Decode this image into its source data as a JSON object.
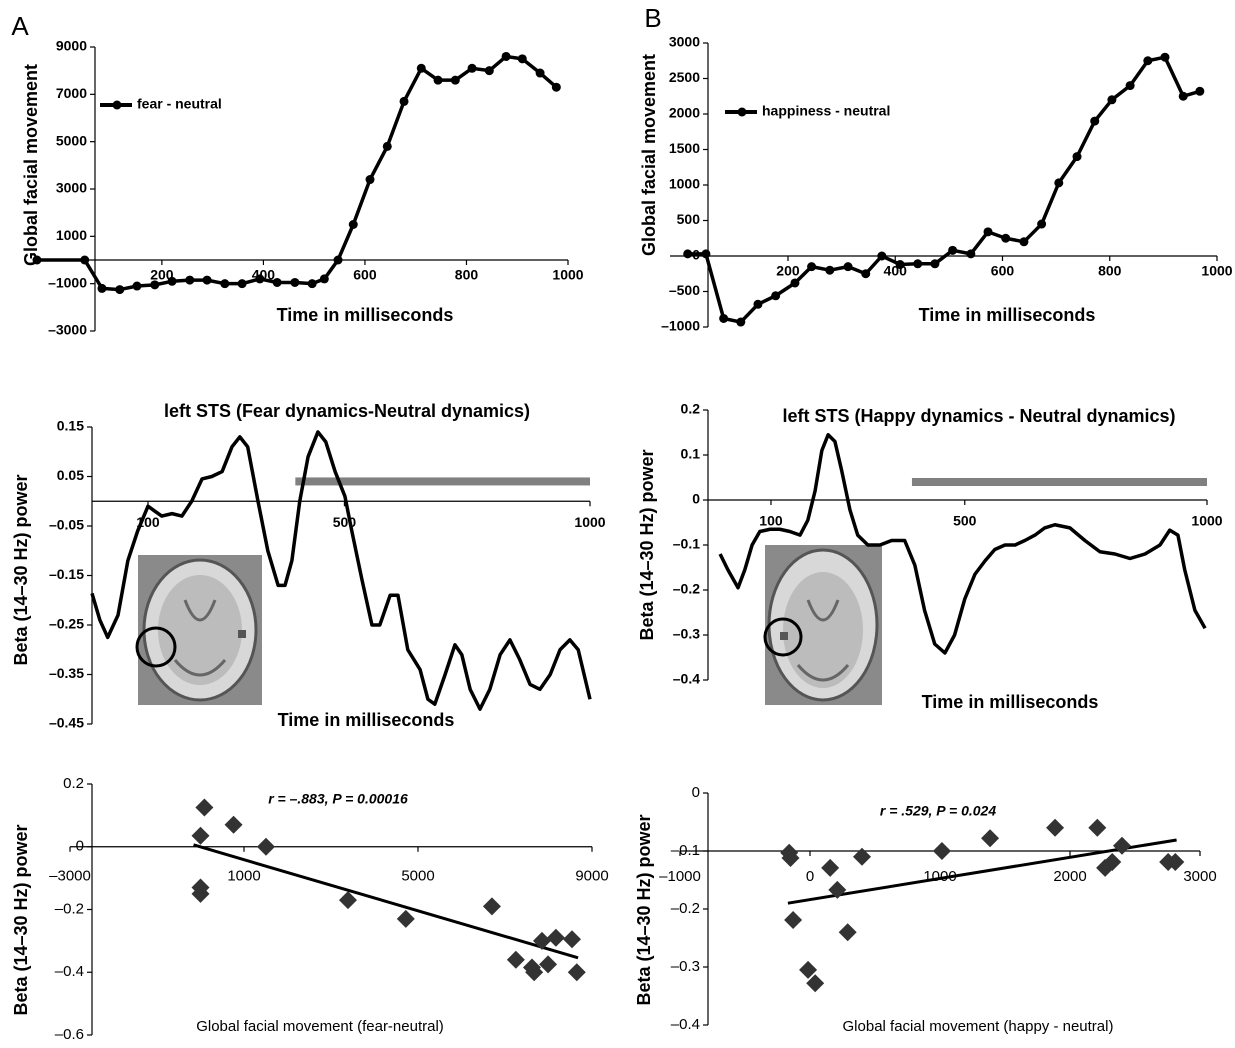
{
  "panels": [
    "A",
    "B"
  ],
  "chart_data": [
    {
      "type": "line",
      "xlabel": "Time in milliseconds",
      "ylabel": "Global facial movement",
      "xlim": [
        -46,
        1000
      ],
      "ylim": [
        -3000,
        9000
      ],
      "x_axis_at": 0,
      "xticks": [
        200,
        400,
        600,
        800,
        1000
      ],
      "yticks": [
        9000,
        7000,
        5000,
        3000,
        1000,
        {
          "value": -1000,
          "label": "–1000"
        },
        {
          "value": -3000,
          "label": "–3000"
        }
      ],
      "legend": "upper left",
      "marker": "circle",
      "x": [
        -46,
        48,
        82,
        117,
        151,
        186,
        220,
        255,
        289,
        324,
        358,
        393,
        427,
        462,
        496,
        520,
        547,
        577,
        610,
        644,
        677,
        711,
        744,
        778,
        811,
        845,
        878,
        910,
        945,
        977
      ],
      "series": [
        {
          "name": "fear - neutral",
          "color": "#000000",
          "values": [
            0,
            0,
            -1200,
            -1250,
            -1100,
            -1050,
            -900,
            -850,
            -850,
            -1000,
            -1000,
            -800,
            -950,
            -950,
            -1000,
            -800,
            0,
            1500,
            3400,
            4800,
            6700,
            8100,
            7600,
            7600,
            8100,
            8000,
            8600,
            8500,
            7900,
            7300
          ]
        }
      ]
    },
    {
      "type": "line",
      "xlabel": "Time in milliseconds",
      "ylabel": "Global facial movement",
      "xlim": [
        -20,
        1000
      ],
      "ylim": [
        -1000,
        3000
      ],
      "x_axis_at": 0,
      "xticks": [
        200,
        400,
        600,
        800,
        1000
      ],
      "yticks": [
        3000,
        2500,
        2000,
        1500,
        1000,
        500,
        0,
        {
          "value": -500,
          "label": "–500"
        },
        {
          "value": -1000,
          "label": "–1000"
        }
      ],
      "legend": "upper left",
      "marker": "circle",
      "x": [
        13,
        47,
        80,
        112,
        144,
        177,
        213,
        244,
        278,
        312,
        345,
        375,
        409,
        442,
        474,
        507,
        541,
        573,
        606,
        640,
        673,
        705,
        739,
        772,
        804,
        838,
        871,
        903,
        937,
        968
      ],
      "series": [
        {
          "name": "happiness - neutral",
          "color": "#000000",
          "values": [
            30,
            30,
            -880,
            -930,
            -680,
            -560,
            -380,
            -150,
            -200,
            -150,
            -250,
            0,
            -120,
            -110,
            -110,
            80,
            30,
            340,
            250,
            200,
            450,
            1030,
            1400,
            1900,
            2200,
            2400,
            2750,
            2800,
            2250,
            2320
          ]
        }
      ]
    },
    {
      "type": "line",
      "title": "left STS (Fear dynamics-Neutral dynamics)",
      "xlabel": "Time in milliseconds",
      "ylabel": "Beta (14–30 Hz) power",
      "xlim": [
        -14,
        1000
      ],
      "ylim": [
        -0.45,
        0.15
      ],
      "x_axis_at": 0,
      "xticks": [
        100,
        500,
        1000
      ],
      "yticks": [
        0.15,
        0.05,
        {
          "value": -0.05,
          "label": "–0.05"
        },
        {
          "value": -0.15,
          "label": "–0.15"
        },
        {
          "value": -0.25,
          "label": "–0.25"
        },
        {
          "value": -0.35,
          "label": "–0.35"
        },
        {
          "value": -0.45,
          "label": "–0.45"
        }
      ],
      "highlight": {
        "x": [
          400,
          1000
        ],
        "y": 0.04,
        "color": "#808080"
      },
      "color": "#000000",
      "x": [
        -14,
        2,
        18,
        39,
        59,
        79,
        100,
        114,
        128,
        149,
        169,
        189,
        210,
        230,
        251,
        271,
        287,
        303,
        324,
        344,
        365,
        379,
        393,
        409,
        426,
        446,
        462,
        481,
        501,
        515,
        536,
        556,
        572,
        593,
        609,
        629,
        654,
        670,
        684,
        705,
        725,
        739,
        756,
        776,
        796,
        817,
        837,
        857,
        878,
        898,
        919,
        939,
        959,
        976,
        1000
      ],
      "values": [
        -0.186,
        -0.24,
        -0.275,
        -0.23,
        -0.12,
        -0.06,
        -0.01,
        -0.02,
        -0.03,
        -0.025,
        -0.03,
        0,
        0.045,
        0.05,
        0.06,
        0.11,
        0.13,
        0.11,
        0,
        -0.1,
        -0.17,
        -0.17,
        -0.12,
        0,
        0.09,
        0.14,
        0.12,
        0.06,
        0.01,
        -0.06,
        -0.16,
        -0.25,
        -0.25,
        -0.19,
        -0.19,
        -0.3,
        -0.34,
        -0.4,
        -0.41,
        -0.35,
        -0.29,
        -0.31,
        -0.38,
        -0.42,
        -0.38,
        -0.31,
        -0.28,
        -0.32,
        -0.37,
        -0.38,
        -0.35,
        -0.3,
        -0.28,
        -0.3,
        -0.4
      ]
    },
    {
      "type": "line",
      "title": "left STS (Happy dynamics - Neutral dynamics)",
      "xlabel": "Time in milliseconds",
      "ylabel": "Beta (14–30 Hz) power",
      "xlim": [
        -30,
        1000
      ],
      "ylim": [
        -0.4,
        0.2
      ],
      "x_axis_at": 0,
      "xticks": [
        100,
        500,
        1000
      ],
      "yticks": [
        0.2,
        0.1,
        0,
        {
          "value": -0.1,
          "label": "–0.1"
        },
        {
          "value": -0.2,
          "label": "–0.2"
        },
        {
          "value": -0.3,
          "label": "–0.3"
        },
        {
          "value": -0.4,
          "label": "–0.4"
        }
      ],
      "highlight": {
        "x": [
          391,
          1000
        ],
        "y": 0.04,
        "color": "#808080"
      },
      "color": "#000000",
      "x": [
        -5,
        11,
        32,
        46,
        61,
        77,
        98,
        118,
        139,
        160,
        176,
        191,
        205,
        218,
        232,
        246,
        263,
        279,
        300,
        325,
        349,
        376,
        397,
        417,
        438,
        459,
        479,
        500,
        521,
        542,
        562,
        583,
        604,
        624,
        645,
        665,
        686,
        717,
        748,
        779,
        810,
        841,
        872,
        903,
        923,
        940,
        954,
        975,
        996
      ],
      "values": [
        -0.12,
        -0.155,
        -0.195,
        -0.155,
        -0.1,
        -0.07,
        -0.065,
        -0.065,
        -0.07,
        -0.078,
        -0.045,
        0.02,
        0.11,
        0.145,
        0.13,
        0.065,
        -0.022,
        -0.078,
        -0.1,
        -0.1,
        -0.09,
        -0.09,
        -0.145,
        -0.245,
        -0.32,
        -0.34,
        -0.3,
        -0.22,
        -0.165,
        -0.135,
        -0.11,
        -0.1,
        -0.1,
        -0.09,
        -0.078,
        -0.062,
        -0.055,
        -0.062,
        -0.09,
        -0.115,
        -0.12,
        -0.13,
        -0.12,
        -0.1,
        -0.067,
        -0.078,
        -0.155,
        -0.245,
        -0.285
      ]
    },
    {
      "type": "scatter",
      "xlabel": "Global facial movement (fear-neutral)",
      "ylabel": "Beta (14–30 Hz) power",
      "annotation": "r = –.883, P = 0.00016",
      "xlim": [
        -3000,
        9000
      ],
      "ylim": [
        -0.6,
        0.2
      ],
      "x_axis_at": 0,
      "xticks": [
        {
          "value": -3000,
          "label": "–3000"
        },
        1000,
        5000,
        9000
      ],
      "yticks": [
        0.2,
        0,
        {
          "value": -0.2,
          "label": "–0.2"
        },
        {
          "value": -0.4,
          "label": "–0.4"
        },
        {
          "value": -0.6,
          "label": "–0.6"
        }
      ],
      "color": "#333333",
      "x": [
        0,
        90,
        760,
        0,
        0,
        1505,
        3390,
        4720,
        6700,
        7250,
        7620,
        7670,
        7850,
        7990,
        8170,
        8540,
        8650
      ],
      "values": [
        0.035,
        0.125,
        0.07,
        -0.13,
        -0.15,
        0,
        -0.17,
        -0.23,
        -0.19,
        -0.36,
        -0.385,
        -0.4,
        -0.3,
        -0.375,
        -0.29,
        -0.295,
        -0.4
      ],
      "trendline": {
        "x": [
          -160,
          8680
        ],
        "y": [
          0.006,
          -0.354
        ]
      }
    },
    {
      "type": "scatter",
      "xlabel": "Global facial movement (happy - neutral)",
      "ylabel": "Beta (14–30 Hz) power",
      "annotation": "r = .529, P = 0.024",
      "xlim": [
        -1000,
        3000
      ],
      "ylim": [
        -0.4,
        0
      ],
      "x_axis_at": -0.1,
      "xticks": [
        {
          "value": -1000,
          "label": "–1000"
        },
        0,
        1000,
        2000,
        3000
      ],
      "yticks": [
        0,
        {
          "value": -0.1,
          "label": "–0.1"
        },
        {
          "value": -0.2,
          "label": "–0.2"
        },
        {
          "value": -0.3,
          "label": "–0.3"
        },
        {
          "value": -0.4,
          "label": "–0.4"
        }
      ],
      "color": "#333333",
      "x": [
        -160,
        -150,
        -130,
        -15,
        40,
        155,
        210,
        290,
        400,
        1015,
        1385,
        1885,
        2210,
        2270,
        2325,
        2400,
        2755,
        2810
      ],
      "values": [
        -0.103,
        -0.112,
        -0.219,
        -0.305,
        -0.328,
        -0.129,
        -0.167,
        -0.24,
        -0.11,
        -0.1,
        -0.078,
        -0.06,
        -0.06,
        -0.129,
        -0.119,
        -0.091,
        -0.119,
        -0.119
      ],
      "trendline": {
        "x": [
          -170,
          2820
        ],
        "y": [
          -0.19,
          -0.081
        ]
      }
    }
  ]
}
